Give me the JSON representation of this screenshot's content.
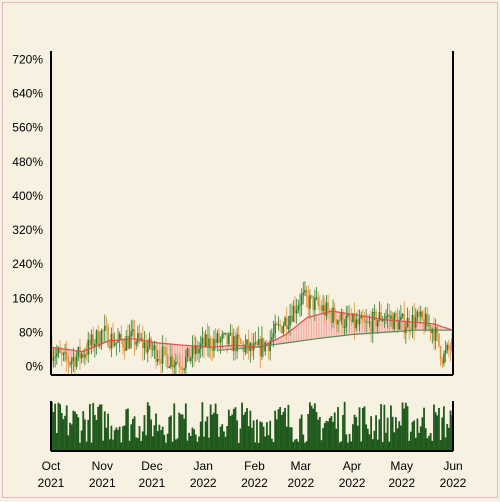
{
  "chart_data": {
    "type": "candlestick",
    "title": "",
    "xlabel": "",
    "ylabel": "",
    "x_start": "2021-10-01",
    "x_end": "2022-06-01",
    "ylim": [
      -20,
      740
    ],
    "y_ticks": [
      0,
      80,
      160,
      240,
      320,
      400,
      480,
      560,
      640,
      720
    ],
    "y_tick_labels": [
      "0%",
      "80%",
      "160%",
      "240%",
      "320%",
      "400%",
      "480%",
      "560%",
      "640%",
      "720%"
    ],
    "x_ticks": [
      {
        "date": "2021-10-01",
        "month": "Oct",
        "year": "2021"
      },
      {
        "date": "2021-11-01",
        "month": "Nov",
        "year": "2021"
      },
      {
        "date": "2021-12-01",
        "month": "Dec",
        "year": "2021"
      },
      {
        "date": "2022-01-01",
        "month": "Jan",
        "year": "2022"
      },
      {
        "date": "2022-02-01",
        "month": "Feb",
        "year": "2022"
      },
      {
        "date": "2022-03-01",
        "month": "Mar",
        "year": "2022"
      },
      {
        "date": "2022-04-01",
        "month": "Apr",
        "year": "2022"
      },
      {
        "date": "2022-05-01",
        "month": "May",
        "year": "2022"
      },
      {
        "date": "2022-06-01",
        "month": "Jun",
        "year": "2022"
      }
    ],
    "price_path": [
      [
        "2021-10-01",
        40
      ],
      [
        "2021-10-10",
        10
      ],
      [
        "2021-10-20",
        30
      ],
      [
        "2021-11-01",
        80
      ],
      [
        "2021-11-10",
        55
      ],
      [
        "2021-11-20",
        65
      ],
      [
        "2021-12-01",
        40
      ],
      [
        "2021-12-10",
        20
      ],
      [
        "2021-12-20",
        10
      ],
      [
        "2022-01-01",
        50
      ],
      [
        "2022-01-10",
        60
      ],
      [
        "2022-01-20",
        55
      ],
      [
        "2022-02-01",
        35
      ],
      [
        "2022-02-10",
        60
      ],
      [
        "2022-02-20",
        110
      ],
      [
        "2022-03-01",
        160
      ],
      [
        "2022-03-10",
        145
      ],
      [
        "2022-03-20",
        120
      ],
      [
        "2022-04-01",
        100
      ],
      [
        "2022-04-10",
        95
      ],
      [
        "2022-04-20",
        120
      ],
      [
        "2022-05-01",
        100
      ],
      [
        "2022-05-10",
        110
      ],
      [
        "2022-05-20",
        90
      ],
      [
        "2022-05-26",
        20
      ],
      [
        "2022-06-01",
        50
      ]
    ],
    "ma_fast": [
      [
        "2021-10-01",
        45
      ],
      [
        "2021-10-20",
        35
      ],
      [
        "2021-11-05",
        60
      ],
      [
        "2021-11-20",
        65
      ],
      [
        "2021-12-05",
        55
      ],
      [
        "2021-12-20",
        50
      ],
      [
        "2022-01-05",
        45
      ],
      [
        "2022-01-20",
        50
      ],
      [
        "2022-02-05",
        45
      ],
      [
        "2022-02-20",
        75
      ],
      [
        "2022-03-05",
        115
      ],
      [
        "2022-03-20",
        130
      ],
      [
        "2022-04-05",
        120
      ],
      [
        "2022-04-20",
        110
      ],
      [
        "2022-05-05",
        105
      ],
      [
        "2022-05-20",
        100
      ],
      [
        "2022-06-01",
        85
      ]
    ],
    "ma_slow": [
      [
        "2022-01-10",
        38
      ],
      [
        "2022-02-01",
        45
      ],
      [
        "2022-02-20",
        55
      ],
      [
        "2022-03-10",
        65
      ],
      [
        "2022-04-01",
        75
      ],
      [
        "2022-04-20",
        80
      ],
      [
        "2022-05-10",
        85
      ],
      [
        "2022-06-01",
        85
      ]
    ],
    "colors": {
      "background": "#f7f1e1",
      "up_candle": "#2f7d2f",
      "down_candle": "#e0913a",
      "up_band": "#8fd18a",
      "down_band": "#f26d6d",
      "ma_fast": "#e24b4b",
      "ma_slow": "#5a8a5a",
      "volume": "#1f5a1c",
      "axis": "#000000"
    }
  }
}
